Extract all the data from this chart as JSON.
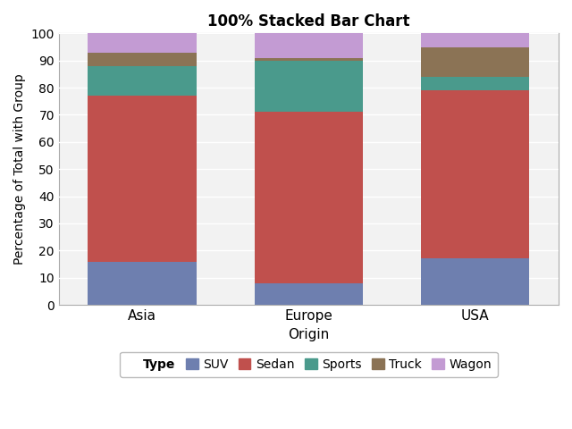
{
  "title": "100% Stacked Bar Chart",
  "xlabel": "Origin",
  "ylabel": "Percentage of Total with Group",
  "categories": [
    "Asia",
    "Europe",
    "USA"
  ],
  "series": {
    "SUV": [
      16,
      8,
      17
    ],
    "Sedan": [
      61,
      63,
      62
    ],
    "Sports": [
      11,
      19,
      5
    ],
    "Truck": [
      5,
      1,
      11
    ],
    "Wagon": [
      7,
      9,
      5
    ]
  },
  "colors": {
    "SUV": "#6e7faf",
    "Sedan": "#c0504d",
    "Sports": "#4a9a8c",
    "Truck": "#8b7355",
    "Wagon": "#c39bd3"
  },
  "ylim": [
    0,
    100
  ],
  "yticks": [
    0,
    10,
    20,
    30,
    40,
    50,
    60,
    70,
    80,
    90,
    100
  ],
  "bar_width": 0.65,
  "plot_bg_color": "#f2f2f2",
  "fig_bg_color": "#ffffff",
  "grid_color": "#ffffff",
  "spine_color": "#aaaaaa",
  "legend_title": "Type"
}
